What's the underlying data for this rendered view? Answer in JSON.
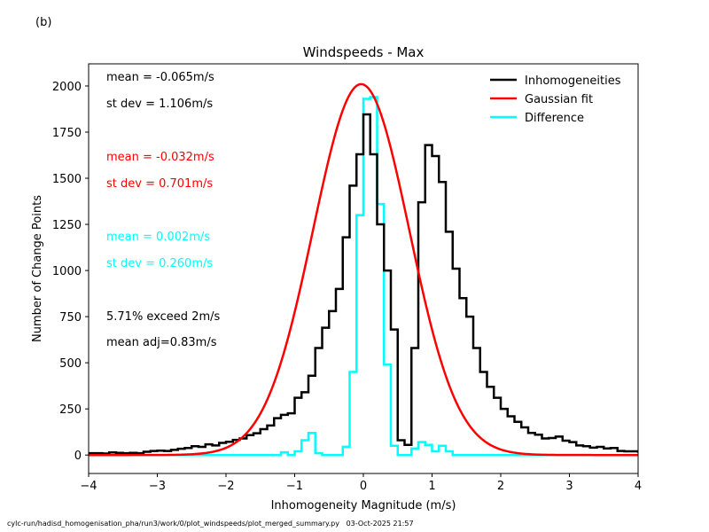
{
  "panel_label": "(b)",
  "footer": {
    "path": "cylc-run/hadisd_homogenisation_pha/run3/work/0/plot_windspeeds/plot_merged_summary.py",
    "timestamp": "03-Oct-2025 21:57"
  },
  "chart_data": {
    "type": "line",
    "title": "Windspeeds - Max",
    "xlabel": "Inhomogeneity Magnitude (m/s)",
    "ylabel": "Number of Change Points",
    "xlim": [
      -4,
      4
    ],
    "ylim": [
      -100,
      2120
    ],
    "xticks": [
      -4,
      -3,
      -2,
      -1,
      0,
      1,
      2,
      3,
      4
    ],
    "xtick_labels": [
      "−4",
      "−3",
      "−2",
      "−1",
      "0",
      "1",
      "2",
      "3",
      "4"
    ],
    "yticks": [
      0,
      250,
      500,
      750,
      1000,
      1250,
      1500,
      1750,
      2000
    ],
    "ytick_labels": [
      "0",
      "250",
      "500",
      "750",
      "1000",
      "1250",
      "1500",
      "1750",
      "2000"
    ],
    "grid": false,
    "legend_position": "top-right",
    "bin_width": 0.1,
    "bin_start": -4.0,
    "series": [
      {
        "name": "Inhomogeneities",
        "color": "#000000",
        "style": "step",
        "values": [
          10,
          10,
          8,
          14,
          12,
          10,
          12,
          10,
          18,
          22,
          24,
          22,
          28,
          34,
          38,
          48,
          44,
          58,
          52,
          66,
          72,
          82,
          90,
          108,
          118,
          140,
          160,
          200,
          218,
          226,
          310,
          340,
          430,
          580,
          690,
          780,
          900,
          1180,
          1460,
          1630,
          1846,
          1630,
          1250,
          1000,
          680,
          80,
          55,
          580,
          1370,
          1680,
          1620,
          1480,
          1210,
          1010,
          850,
          750,
          580,
          450,
          370,
          310,
          250,
          210,
          180,
          150,
          120,
          110,
          90,
          92,
          100,
          78,
          70,
          52,
          48,
          40,
          44,
          36,
          38,
          22,
          20,
          20,
          18,
          12,
          12,
          12,
          10,
          10,
          10,
          8,
          8,
          6,
          8,
          8,
          10,
          8,
          6,
          8,
          8,
          6,
          6,
          8,
          6,
          6
        ]
      },
      {
        "name": "Gaussian fit",
        "color": "#ff0000",
        "style": "curve",
        "mean": -0.032,
        "stdev": 0.701,
        "amplitude": 2010
      },
      {
        "name": "Difference",
        "color": "#00ffff",
        "style": "step",
        "values": [
          0,
          0,
          0,
          0,
          0,
          0,
          0,
          0,
          0,
          0,
          0,
          0,
          0,
          0,
          0,
          0,
          0,
          0,
          0,
          0,
          0,
          0,
          0,
          0,
          0,
          0,
          0,
          0,
          0,
          0,
          0,
          0,
          0,
          0,
          0,
          0,
          0,
          0,
          0,
          0,
          0,
          0,
          0,
          0,
          0,
          0,
          0,
          0,
          0,
          0,
          0,
          0,
          0,
          0,
          0,
          0,
          0,
          0,
          0,
          0,
          0,
          0,
          0,
          0,
          0,
          0,
          0,
          0,
          0,
          0,
          0,
          0,
          0,
          0,
          0,
          0,
          0,
          0,
          0,
          0,
          0,
          0,
          0,
          0,
          0,
          0,
          0,
          0,
          0,
          0,
          0,
          0,
          0,
          0,
          0,
          0,
          0,
          0,
          0,
          0
        ],
        "central_bins": {
          "x_start": -1.3,
          "values": [
            0,
            15,
            0,
            20,
            80,
            120,
            10,
            0,
            0,
            0,
            45,
            450,
            1300,
            1930,
            1940,
            1360,
            490,
            50,
            0,
            0,
            35,
            70,
            55,
            20,
            50,
            20,
            0
          ]
        }
      }
    ],
    "annotations": [
      {
        "text": "mean = -0.065m/s",
        "color": "#000000"
      },
      {
        "text": "st dev =  1.106m/s",
        "color": "#000000"
      },
      {
        "text": "mean = -0.032m/s",
        "color": "#ff0000"
      },
      {
        "text": "st dev =  0.701m/s",
        "color": "#ff0000"
      },
      {
        "text": "mean =  0.002m/s",
        "color": "#00ffff"
      },
      {
        "text": "st dev =  0.260m/s",
        "color": "#00ffff"
      },
      {
        "text": "5.71% exceed 2m/s",
        "color": "#000000"
      },
      {
        "text": "mean adj=0.83m/s",
        "color": "#000000"
      }
    ]
  }
}
